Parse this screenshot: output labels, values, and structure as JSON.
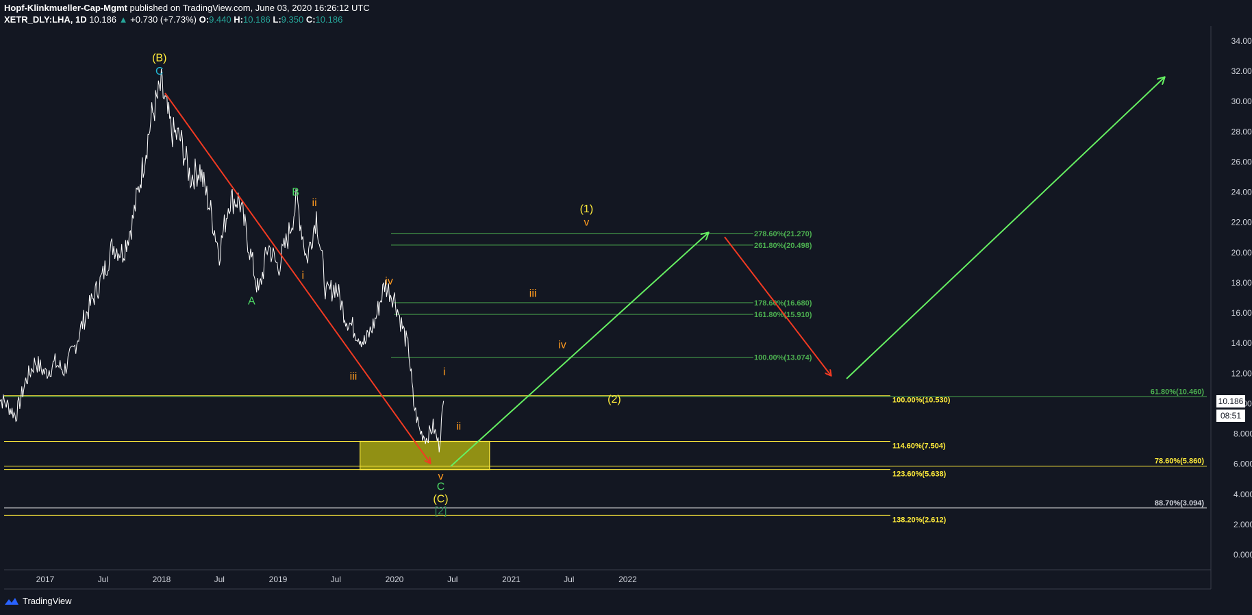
{
  "header": {
    "publisher": "Hopf-Klinkmueller-Cap-Mgmt",
    "published_text": "published on TradingView.com, June 03, 2020 16:26:12 UTC",
    "symbol": "XETR_DLY:LHA, 1D",
    "last": "10.186",
    "change": "+0.730 (+7.73%)",
    "open_label": "O:",
    "open": "9.440",
    "high_label": "H:",
    "high": "10.186",
    "low_label": "L:",
    "low": "9.350",
    "close_label": "C:",
    "close": "10.186"
  },
  "footer": {
    "brand": "TradingView"
  },
  "price_badge": {
    "value": "10.186",
    "timer": "08:51"
  },
  "colors": {
    "background": "#131722",
    "price": "#ffffff",
    "fib_green": "#4caf50",
    "fib_yellow": "#ffeb3b",
    "arrow_red": "#f23a22",
    "arrow_green": "#66f062",
    "wave_orange": "#ff9a1f",
    "wave_yellow": "#ffeb3b",
    "wave_cyan": "#22b8d6",
    "wave_green": "#4cd964",
    "box_fill": "#a8a612"
  },
  "chart_data": {
    "type": "line",
    "title": "",
    "xlabel": "",
    "ylabel": "",
    "x_ticks": [
      "2017",
      "Jul",
      "2018",
      "Jul",
      "2019",
      "Jul",
      "2020",
      "Jul",
      "2021",
      "Jul",
      "2022"
    ],
    "y_ticks": [
      "34.000",
      "32.000",
      "30.000",
      "28.000",
      "26.000",
      "24.000",
      "22.000",
      "20.000",
      "18.000",
      "16.000",
      "14.000",
      "12.000",
      "10.000",
      "8.000",
      "6.000",
      "4.000",
      "2.000",
      "0.000"
    ],
    "ylim": [
      -0.8,
      34.8
    ],
    "series": [
      {
        "x": [
          "2016-08-01",
          "2016-09-01",
          "2016-10-01",
          "2016-11-01",
          "2016-12-01",
          "2017-01-01",
          "2017-02-01",
          "2017-03-01",
          "2017-04-01",
          "2017-05-01",
          "2017-06-01",
          "2017-07-01",
          "2017-08-01",
          "2017-09-01",
          "2017-10-01",
          "2017-11-01",
          "2017-12-01",
          "2017-12-31",
          "2018-02-01",
          "2018-03-01",
          "2018-04-01",
          "2018-05-01",
          "2018-06-01",
          "2018-07-01",
          "2018-08-01",
          "2018-09-01",
          "2018-10-01",
          "2018-11-01",
          "2018-12-01",
          "2019-01-01",
          "2019-02-01",
          "2019-03-01",
          "2019-04-01",
          "2019-05-01",
          "2019-06-01",
          "2019-07-01",
          "2019-08-01",
          "2019-09-01",
          "2019-10-01",
          "2019-11-01",
          "2019-12-01",
          "2020-01-01",
          "2020-01-20",
          "2020-02-15",
          "2020-03-01",
          "2020-03-20",
          "2020-04-10",
          "2020-05-01",
          "2020-05-20",
          "2020-06-03"
        ],
        "y": [
          10.5,
          10.0,
          9.2,
          11.5,
          12.8,
          12.0,
          12.7,
          12.2,
          13.6,
          15.5,
          17.0,
          18.5,
          20.5,
          20.0,
          22.0,
          25.5,
          29.0,
          31.0,
          28.0,
          27.5,
          25.0,
          25.5,
          23.0,
          20.0,
          23.5,
          23.5,
          20.5,
          17.3,
          20.5,
          19.0,
          21.0,
          23.5,
          19.5,
          22.5,
          17.2,
          17.8,
          15.7,
          14.8,
          14.0,
          15.5,
          17.9,
          17.0,
          15.5,
          13.5,
          10.0,
          8.2,
          7.7,
          8.5,
          7.2,
          10.186
        ]
      }
    ],
    "fib_levels": [
      {
        "label": "278.60%(21.270)",
        "value": 21.27
      },
      {
        "label": "261.80%(20.498)",
        "value": 20.498
      },
      {
        "label": "178.60%(16.680)",
        "value": 16.68
      },
      {
        "label": "161.80%(15.910)",
        "value": 15.91
      },
      {
        "label": "100.00%(13.074)",
        "value": 13.074
      },
      {
        "label": "100.00%(10.530)",
        "value": 10.53
      },
      {
        "label": "114.60%(7.504)",
        "value": 7.504
      },
      {
        "label": "123.60%(5.638)",
        "value": 5.638
      },
      {
        "label": "138.20%(2.612)",
        "value": 2.612
      },
      {
        "label": "61.80%(10.460)",
        "value": 10.46
      },
      {
        "label": "78.60%(5.860)",
        "value": 5.86
      },
      {
        "label": "88.70%(3.094)",
        "value": 3.094
      }
    ],
    "wave_labels": [
      {
        "text": "(B)",
        "x": "2017-12-25",
        "y": 32.9
      },
      {
        "text": "C",
        "x": "2017-12-25",
        "y": 32.0
      },
      {
        "text": "A",
        "x": "2018-10-10",
        "y": 16.8
      },
      {
        "text": "B",
        "x": "2019-02-25",
        "y": 24.0
      },
      {
        "text": "ii",
        "x": "2019-04-25",
        "y": 23.3
      },
      {
        "text": "i",
        "x": "2019-03-20",
        "y": 18.5
      },
      {
        "text": "iv",
        "x": "2019-12-15",
        "y": 18.1
      },
      {
        "text": "iii",
        "x": "2019-08-25",
        "y": 11.8
      },
      {
        "text": "i",
        "x": "2020-06-05",
        "y": 12.1
      },
      {
        "text": "ii",
        "x": "2020-07-20",
        "y": 8.5
      },
      {
        "text": "v",
        "x": "2020-05-25",
        "y": 5.2
      },
      {
        "text": "C",
        "x": "2020-05-25",
        "y": 4.5
      },
      {
        "text": "(C)",
        "x": "2020-05-25",
        "y": 3.7
      },
      {
        "text": "[2]",
        "x": "2020-05-25",
        "y": 2.9
      },
      {
        "text": "iii",
        "x": "2021-03-10",
        "y": 17.3
      },
      {
        "text": "iv",
        "x": "2021-06-10",
        "y": 13.9
      },
      {
        "text": "(1)",
        "x": "2021-08-25",
        "y": 22.9
      },
      {
        "text": "v",
        "x": "2021-08-25",
        "y": 22.0
      },
      {
        "text": "(2)",
        "x": "2021-11-20",
        "y": 10.3
      }
    ],
    "projected_zone": {
      "x0": "2019-09-15",
      "x1": "2020-10-25",
      "y0": 5.638,
      "y1": 7.504
    }
  }
}
